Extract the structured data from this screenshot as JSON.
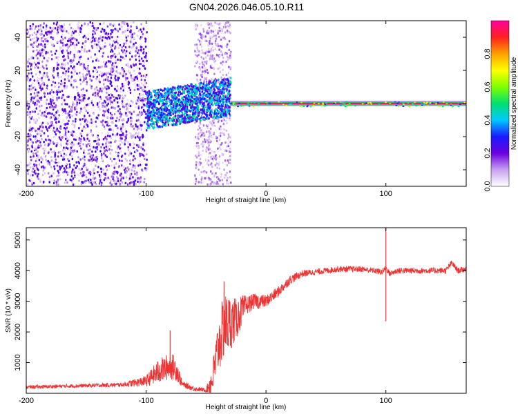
{
  "title": "GN04.2026.046.05.10.R11",
  "chart_data": [
    {
      "type": "heatmap",
      "name": "spectrogram",
      "xlabel": "Height of straight line (km)",
      "ylabel": "Frequency (Hz)",
      "xlim": [
        -200,
        167
      ],
      "ylim": [
        -50,
        50
      ],
      "xticks": [
        -200,
        -100,
        0,
        100
      ],
      "yticks": [
        -40,
        -20,
        0,
        20,
        40
      ],
      "colorbar": {
        "label": "Normalized spectral amplitude",
        "range": [
          0,
          1
        ],
        "ticks": [
          0.0,
          0.2,
          0.4,
          0.6,
          0.8
        ],
        "colors": [
          "#ffffff",
          "#c8a0f0",
          "#6a00e0",
          "#1a1aff",
          "#00c8ff",
          "#00e070",
          "#80ff00",
          "#ffff00",
          "#ffa000",
          "#ff2020",
          "#ff00a0"
        ]
      },
      "regions": [
        {
          "desc": "broadband noise",
          "x": [
            -200,
            -100
          ],
          "freq": [
            -50,
            50
          ],
          "amplitude": 0.15
        },
        {
          "desc": "noise band",
          "x": [
            -60,
            -30
          ],
          "freq": [
            -50,
            50
          ],
          "amplitude": 0.08
        },
        {
          "desc": "transition cluster",
          "x": [
            -100,
            -30
          ],
          "freq": [
            -15,
            8
          ],
          "amplitude": 0.3
        },
        {
          "desc": "carrier line",
          "x": [
            -30,
            167
          ],
          "freq": [
            0,
            0
          ],
          "amplitude": 0.95
        }
      ]
    },
    {
      "type": "line",
      "name": "snr",
      "xlabel": "Height of straight line (km)",
      "ylabel": "SNR (10 * v/v)",
      "xlim": [
        -200,
        167
      ],
      "ylim": [
        0,
        5400
      ],
      "xticks": [
        -200,
        -100,
        0,
        100
      ],
      "yticks": [
        1000,
        2000,
        3000,
        4000,
        5000
      ],
      "color": "#ee3333",
      "x": [
        -200,
        -150,
        -120,
        -100,
        -90,
        -80,
        -75,
        -70,
        -60,
        -50,
        -45,
        -40,
        -35,
        -30,
        -25,
        -20,
        -15,
        -10,
        -5,
        0,
        10,
        20,
        30,
        40,
        50,
        60,
        70,
        80,
        90,
        97,
        100,
        103,
        110,
        120,
        130,
        140,
        150,
        155,
        160,
        167
      ],
      "y": [
        200,
        250,
        280,
        400,
        700,
        900,
        800,
        300,
        150,
        100,
        400,
        1500,
        2200,
        2300,
        2400,
        2700,
        2900,
        3000,
        3000,
        3000,
        3300,
        3700,
        3900,
        3950,
        4000,
        4050,
        4050,
        4050,
        4000,
        3950,
        4100,
        3900,
        4000,
        4000,
        4000,
        4000,
        4000,
        4250,
        4000,
        4050
      ],
      "noise": [
        60,
        60,
        70,
        180,
        400,
        450,
        400,
        100,
        80,
        60,
        500,
        900,
        1100,
        900,
        700,
        500,
        300,
        250,
        250,
        200,
        180,
        150,
        120,
        100,
        100,
        100,
        100,
        100,
        100,
        100,
        100,
        100,
        100,
        100,
        100,
        100,
        100,
        100,
        100,
        100
      ],
      "spikes": [
        {
          "x": -80,
          "y": 2050
        },
        {
          "x": -35,
          "y": 3650
        },
        {
          "x": 100,
          "y": 5400
        },
        {
          "x": 100,
          "y": 2350
        }
      ]
    }
  ]
}
